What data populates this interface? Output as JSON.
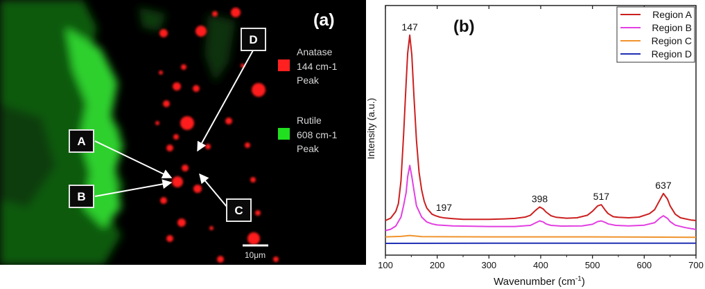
{
  "panel_a": {
    "label": "(a)",
    "legend": [
      {
        "text_lines": [
          "Anatase",
          "144 cm-1",
          "Peak"
        ],
        "color": "#ff2020"
      },
      {
        "text_lines": [
          "Rutile",
          "608 cm-1",
          "Peak"
        ],
        "color": "#20e020"
      }
    ],
    "markers": [
      "A",
      "B",
      "C",
      "D"
    ],
    "scalebar_label": "10μm"
  },
  "chart_data": {
    "type": "line",
    "panel_label": "(b)",
    "xlabel_main": "Wavenumber (cm",
    "xlabel_sup": "-1",
    "xlabel_end": ")",
    "ylabel": "Intensity (a.u.)",
    "xlim": [
      100,
      700
    ],
    "ylim": [
      0,
      100
    ],
    "xticks": [
      100,
      200,
      300,
      400,
      500,
      600,
      700
    ],
    "y_tick_labels": false,
    "legend_position": "top-right",
    "series": [
      {
        "name": "Region A",
        "color": "#cc1f1f",
        "x": [
          100,
          110,
          120,
          125,
          130,
          135,
          140,
          143,
          147,
          151,
          155,
          160,
          165,
          170,
          175,
          180,
          190,
          197,
          205,
          215,
          230,
          250,
          280,
          300,
          330,
          350,
          370,
          380,
          390,
          398,
          405,
          410,
          420,
          430,
          450,
          470,
          490,
          500,
          510,
          517,
          525,
          530,
          540,
          550,
          570,
          590,
          610,
          620,
          630,
          637,
          645,
          650,
          660,
          670,
          690,
          700
        ],
        "y": [
          10.5,
          11.5,
          14.5,
          18,
          28,
          48,
          72,
          85,
          93,
          84,
          66,
          46,
          32,
          24,
          19,
          16,
          13.3,
          12.6,
          12,
          11.6,
          11.3,
          11,
          11,
          11,
          11.2,
          11.4,
          12,
          12.8,
          15,
          16.5,
          15.6,
          14.3,
          12.6,
          11.9,
          11.5,
          11.7,
          12.8,
          14.6,
          17,
          17.5,
          15,
          13.6,
          12.2,
          11.9,
          11.7,
          12,
          13.5,
          15.3,
          19.5,
          22.5,
          20,
          17,
          13.3,
          11.7,
          10.7,
          10.5
        ]
      },
      {
        "name": "Region B",
        "color": "#e23fe2",
        "x": [
          100,
          110,
          120,
          130,
          135,
          140,
          143,
          147,
          151,
          155,
          160,
          170,
          180,
          190,
          200,
          230,
          270,
          300,
          350,
          380,
          390,
          398,
          405,
          410,
          420,
          440,
          480,
          500,
          510,
          517,
          525,
          530,
          545,
          570,
          600,
          620,
          630,
          637,
          645,
          650,
          660,
          680,
          700
        ],
        "y": [
          6,
          6.6,
          8,
          12,
          17,
          23,
          30,
          35,
          30,
          24,
          17,
          12,
          9.8,
          9,
          8.5,
          8.1,
          7.9,
          7.8,
          7.8,
          8.3,
          9.4,
          10.3,
          9.8,
          9,
          8.3,
          8,
          8.1,
          8.8,
          10,
          10.3,
          9.6,
          9,
          8.3,
          8.1,
          8.4,
          9.5,
          11.5,
          12.6,
          11.4,
          10,
          8.4,
          7.3,
          6.5
        ]
      },
      {
        "name": "Region C",
        "color": "#f0932c",
        "x": [
          100,
          130,
          147,
          170,
          300,
          500,
          600,
          700
        ],
        "y": [
          3.2,
          3.4,
          3.8,
          3.3,
          3.2,
          3.2,
          3.1,
          3.0
        ]
      },
      {
        "name": "Region D",
        "color": "#1f2fb4",
        "x": [
          100,
          300,
          500,
          700
        ],
        "y": [
          0.3,
          0.4,
          0.4,
          0.4
        ]
      }
    ],
    "annotations": [
      {
        "text": "147",
        "x": 147,
        "y": 93
      },
      {
        "text": "197",
        "x": 197,
        "y": 12.6
      },
      {
        "text": "398",
        "x": 398,
        "y": 16.5
      },
      {
        "text": "517",
        "x": 517,
        "y": 17.5
      },
      {
        "text": "637",
        "x": 637,
        "y": 22.5
      }
    ]
  }
}
